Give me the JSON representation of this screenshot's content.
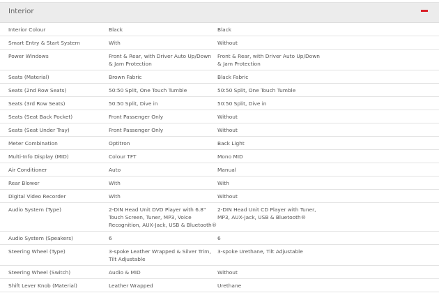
{
  "section": {
    "title": "Interior",
    "toggle_icon": "minus-icon",
    "accent_color": "#d9222a"
  },
  "rows": [
    {
      "label": "Interior Colour",
      "a": [
        "Black"
      ],
      "b": [
        "Black"
      ]
    },
    {
      "label": "Smart Entry & Start System",
      "a": [
        "With"
      ],
      "b": [
        "Without"
      ]
    },
    {
      "label": "Power Windows",
      "a": [
        "Front & Rear, with Driver Auto Up/Down",
        "& Jam Protection"
      ],
      "b": [
        "Front & Rear, with Driver Auto Up/Down",
        "& Jam Protection"
      ]
    },
    {
      "label": "Seats (Material)",
      "a": [
        "Brown Fabric"
      ],
      "b": [
        "Black Fabric"
      ]
    },
    {
      "label": "Seats (2nd Row Seats)",
      "a": [
        "50:50 Split, One Touch Tumble"
      ],
      "b": [
        "50:50 Split, One Touch Tumble"
      ]
    },
    {
      "label": "Seats (3rd Row Seats)",
      "a": [
        "50:50 Split, Dive in"
      ],
      "b": [
        "50:50 Split, Dive in"
      ]
    },
    {
      "label": "Seats (Seat Back Pocket)",
      "a": [
        "Front Passenger Only"
      ],
      "b": [
        "Without"
      ]
    },
    {
      "label": "Seats (Seat Under Tray)",
      "a": [
        "Front Passenger Only"
      ],
      "b": [
        "Without"
      ]
    },
    {
      "label": "Meter Combination",
      "a": [
        "Optitron"
      ],
      "b": [
        "Back Light"
      ]
    },
    {
      "label": "Multi-Info Display (MID)",
      "a": [
        "Colour TFT"
      ],
      "b": [
        "Mono MID"
      ]
    },
    {
      "label": "Air Conditioner",
      "a": [
        "Auto"
      ],
      "b": [
        "Manual"
      ]
    },
    {
      "label": "Rear Blower",
      "a": [
        "With"
      ],
      "b": [
        "With"
      ]
    },
    {
      "label": "Digital Video Recorder",
      "a": [
        "With"
      ],
      "b": [
        "Without"
      ]
    },
    {
      "label": "Audio System (Type)",
      "a": [
        "2-DIN Head Unit DVD Player with 6.8\"",
        "Touch Screen, Tuner, MP3, Voice",
        "Recognition, AUX-Jack, USB & Bluetooth®"
      ],
      "b": [
        "2-DIN Head Unit CD Player with Tuner,",
        "MP3, AUX-Jack, USB & Bluetooth®"
      ]
    },
    {
      "label": "Audio System (Speakers)",
      "a": [
        "6"
      ],
      "b": [
        "6"
      ]
    },
    {
      "label": "Steering Wheel (Type)",
      "a": [
        "3-spoke Leather Wrapped & Silver Trim,",
        "Tilt Adjustable"
      ],
      "b": [
        "3-spoke Urethane, Tilt Adjustable"
      ]
    },
    {
      "label": "Steering Wheel (Switch)",
      "a": [
        "Audio & MID"
      ],
      "b": [
        "Without"
      ]
    },
    {
      "label": "Shift Lever Knob (Material)",
      "a": [
        "Leather Wrapped"
      ],
      "b": [
        "Urethane"
      ]
    }
  ]
}
